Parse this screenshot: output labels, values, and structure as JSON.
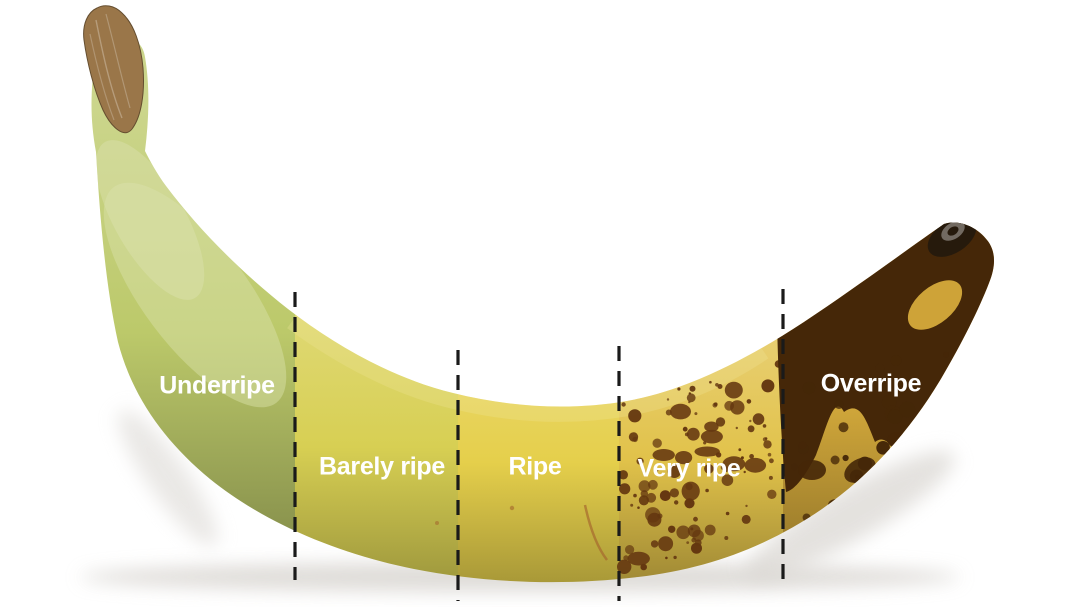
{
  "figure": {
    "name": "Banana ripeness stages",
    "background_color": "#ffffff",
    "label_text_color": "#ffffff",
    "divider_color": "#1a1a1a",
    "shadow_color": "#d9d6d1",
    "stem_dried_tip_color": "#9a7649",
    "blossom_tip_color": "#261a0c",
    "stages": [
      {
        "label": "Underripe",
        "peel_color": "#bcc96a"
      },
      {
        "label": "Barely ripe",
        "peel_color": "#d7cf53"
      },
      {
        "label": "Ripe",
        "peel_color": "#e5cf4b"
      },
      {
        "label": "Very ripe",
        "peel_color": "#e1c24a",
        "spot_color": "#643710"
      },
      {
        "label": "Overripe",
        "peel_color": "#ddb13e",
        "spot_color": "#452708"
      }
    ]
  }
}
